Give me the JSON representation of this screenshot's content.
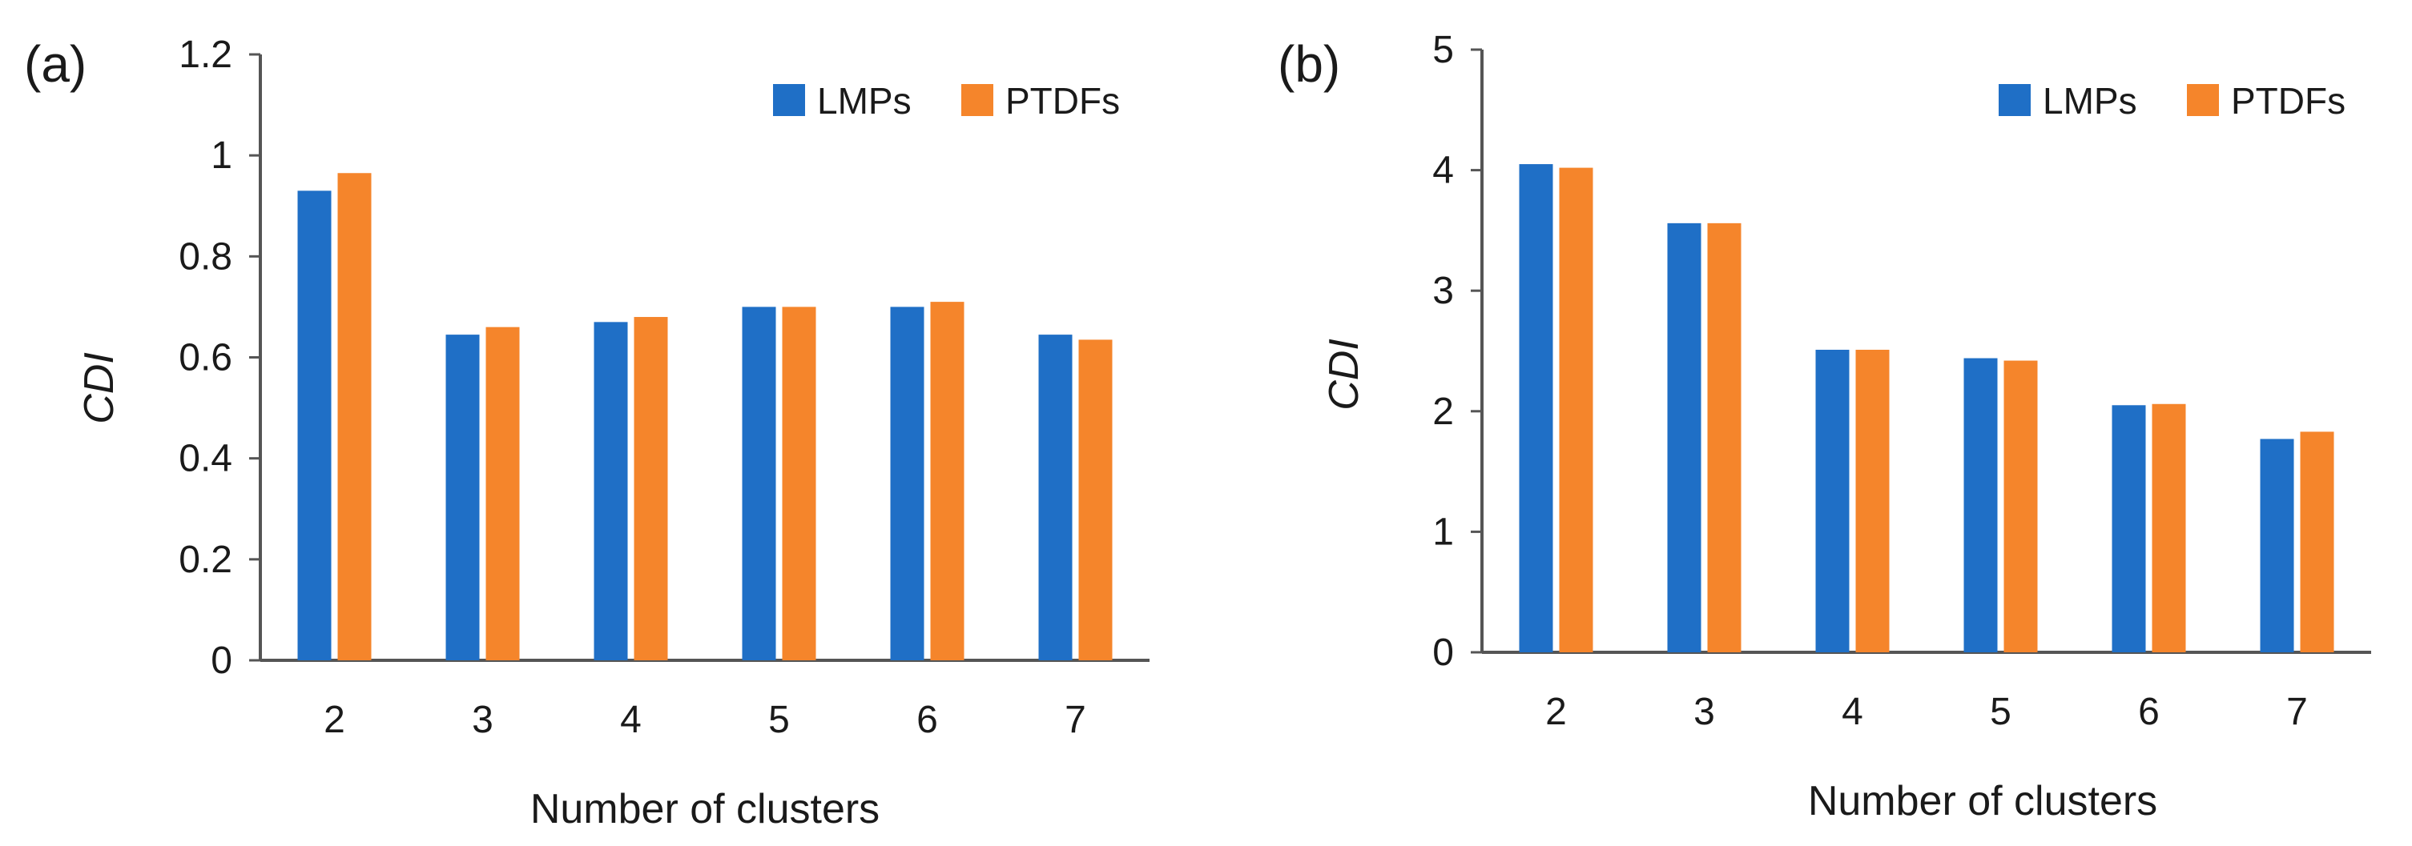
{
  "chart_data": [
    {
      "type": "bar",
      "panel_label": "(a)",
      "categories": [
        "2",
        "3",
        "4",
        "5",
        "6",
        "7"
      ],
      "series": [
        {
          "name": "LMPs",
          "values": [
            0.93,
            0.645,
            0.67,
            0.7,
            0.7,
            0.645
          ]
        },
        {
          "name": "PTDFs",
          "values": [
            0.965,
            0.66,
            0.68,
            0.7,
            0.71,
            0.635
          ]
        }
      ],
      "xlabel": "Number of clusters",
      "ylabel": "CDI",
      "ylim": [
        0,
        1.2
      ],
      "yticks": [
        "0",
        "0.2",
        "0.4",
        "0.6",
        "0.8",
        "1",
        "1.2"
      ],
      "legend_position": "top-right",
      "grid": false
    },
    {
      "type": "bar",
      "panel_label": "(b)",
      "categories": [
        "2",
        "3",
        "4",
        "5",
        "6",
        "7"
      ],
      "series": [
        {
          "name": "LMPs",
          "values": [
            4.05,
            3.56,
            2.51,
            2.44,
            2.05,
            1.77
          ]
        },
        {
          "name": "PTDFs",
          "values": [
            4.02,
            3.56,
            2.51,
            2.42,
            2.06,
            1.83
          ]
        }
      ],
      "xlabel": "Number of clusters",
      "ylabel": "CDI",
      "ylim": [
        0,
        5
      ],
      "yticks": [
        "0",
        "1",
        "2",
        "3",
        "4",
        "5"
      ],
      "legend_position": "top-right",
      "grid": false
    }
  ],
  "colors": {
    "LMPs": "#1f6fc6",
    "PTDFs": "#f5852b",
    "axis": "#555555"
  }
}
